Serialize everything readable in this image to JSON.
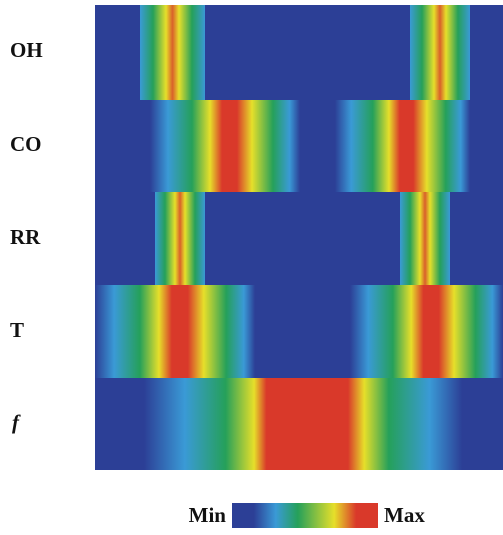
{
  "row_labels": [
    "OH",
    "CO",
    "RR",
    "T",
    "f"
  ],
  "colorbar": {
    "min_label": "Min",
    "max_label": "Max"
  }
}
